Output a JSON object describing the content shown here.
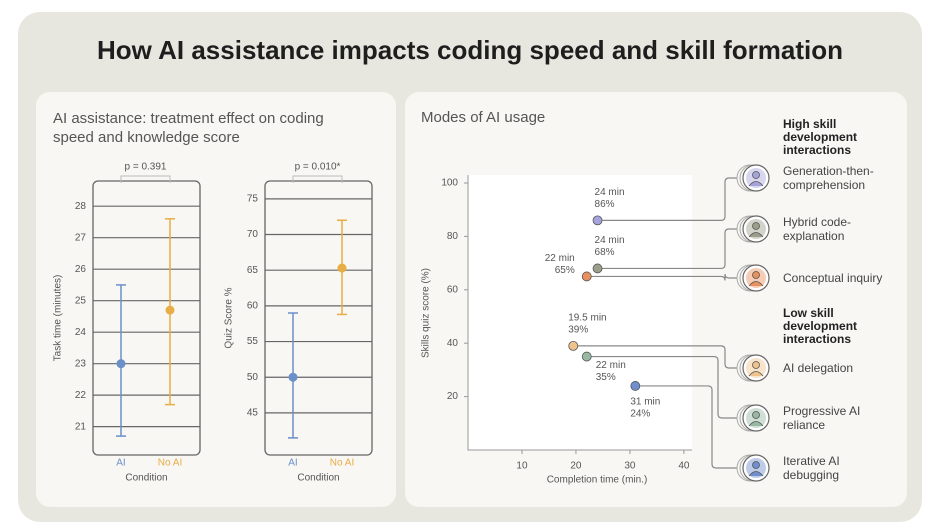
{
  "title": "How AI assistance impacts coding speed and skill formation",
  "panel_titles": [
    "AI assistance: treatment effect on coding speed and knowledge score",
    "Modes of AI usage"
  ],
  "chart_data": [
    {
      "type": "errorbar",
      "p_value": "p = 0.391",
      "ylabel": "Task time (minutes)",
      "xlabel": "Condition",
      "categories": [
        "AI",
        "No AI"
      ],
      "colors": [
        "#6b8fc9",
        "#e8ad45"
      ],
      "values": [
        23.0,
        24.7
      ],
      "lower": [
        20.7,
        21.7
      ],
      "upper": [
        25.5,
        27.6
      ],
      "ylim": [
        20.1,
        28.8
      ],
      "yticks": [
        21,
        22,
        23,
        24,
        25,
        26,
        27,
        28
      ],
      "grid": true
    },
    {
      "type": "errorbar",
      "p_value": "p = 0.010*",
      "ylabel": "Quiz Score %",
      "xlabel": "Condition",
      "categories": [
        "AI",
        "No AI"
      ],
      "colors": [
        "#6b8fc9",
        "#e8ad45"
      ],
      "values": [
        50,
        65.3
      ],
      "lower": [
        41.5,
        58.8
      ],
      "upper": [
        59,
        72
      ],
      "ylim": [
        39.1,
        77.5
      ],
      "yticks": [
        45,
        50,
        55,
        60,
        65,
        70,
        75
      ],
      "grid": true
    },
    {
      "type": "scatter",
      "xlabel": "Completion time (min.)",
      "ylabel": "Skills quiz score (%)",
      "xlim": [
        0,
        41.5
      ],
      "ylim": [
        0,
        103
      ],
      "xticks": [
        10,
        20,
        30,
        40
      ],
      "yticks": [
        20,
        40,
        60,
        80,
        100
      ],
      "legend_groups": [
        {
          "title": "High skill development interactions",
          "series": [
            {
              "name": "Generation-then-comprehension",
              "color": "#a6a3dc",
              "x": [
                24
              ],
              "values": [
                86
              ],
              "x_labels": [
                "24 min"
              ],
              "value_labels": [
                "86%"
              ]
            },
            {
              "name": "Hybrid code-explanation",
              "color": "#9c9e8b",
              "x": [
                24
              ],
              "values": [
                68
              ],
              "x_labels": [
                "24 min"
              ],
              "value_labels": [
                "68%"
              ]
            },
            {
              "name": "Conceptual inquiry",
              "color": "#e8905e",
              "x": [
                22
              ],
              "values": [
                65
              ],
              "x_labels": [
                "22 min"
              ],
              "value_labels": [
                "65%"
              ]
            }
          ]
        },
        {
          "title": "Low skill development interactions",
          "series": [
            {
              "name": "AI delegation",
              "color": "#f0c28c",
              "x": [
                19.5
              ],
              "values": [
                39
              ],
              "x_labels": [
                "19.5 min"
              ],
              "value_labels": [
                "39%"
              ]
            },
            {
              "name": "Progressive AI reliance",
              "color": "#97b8a3",
              "x": [
                22
              ],
              "values": [
                35
              ],
              "x_labels": [
                "22 min"
              ],
              "value_labels": [
                "35%"
              ]
            },
            {
              "name": "Iterative AI debugging",
              "color": "#6f8fcf",
              "x": [
                31
              ],
              "values": [
                24
              ],
              "x_labels": [
                "31 min"
              ],
              "value_labels": [
                "24%"
              ]
            }
          ]
        }
      ]
    }
  ]
}
